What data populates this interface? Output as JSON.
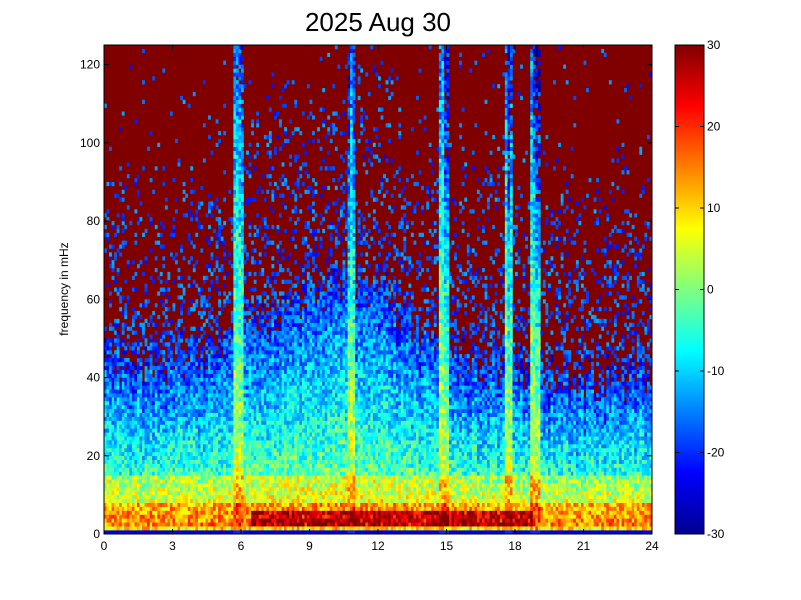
{
  "chart_data": {
    "type": "heatmap",
    "title": "2025 Aug 30",
    "xlabel": "",
    "ylabel": "frequency in mHz",
    "xlim": [
      0,
      24
    ],
    "ylim": [
      0,
      125
    ],
    "x_ticks": [
      0,
      3,
      6,
      9,
      12,
      15,
      18,
      21,
      24
    ],
    "y_ticks": [
      0,
      20,
      40,
      60,
      80,
      100,
      120
    ],
    "colormap": "jet",
    "clim": [
      -30,
      30
    ],
    "colorbar_ticks": [
      -30,
      -20,
      -10,
      0,
      10,
      20,
      30
    ],
    "grid": false,
    "colorbar_position": "right",
    "grid_columns": 216,
    "grid_rows": 125,
    "background_level_db": 30,
    "noise_floor_profile": [
      {
        "hour": 0,
        "top_freq_mhz": 45
      },
      {
        "hour": 2,
        "top_freq_mhz": 40
      },
      {
        "hour": 4,
        "top_freq_mhz": 43
      },
      {
        "hour": 6,
        "top_freq_mhz": 50
      },
      {
        "hour": 8,
        "top_freq_mhz": 55
      },
      {
        "hour": 10,
        "top_freq_mhz": 62
      },
      {
        "hour": 12,
        "top_freq_mhz": 58
      },
      {
        "hour": 13.5,
        "top_freq_mhz": 48
      },
      {
        "hour": 15,
        "top_freq_mhz": 42
      },
      {
        "hour": 17,
        "top_freq_mhz": 40
      },
      {
        "hour": 19,
        "top_freq_mhz": 37
      },
      {
        "hour": 21,
        "top_freq_mhz": 35
      },
      {
        "hour": 24,
        "top_freq_mhz": 38
      }
    ],
    "vertical_streaks_hours": [
      5.9,
      10.8,
      14.9,
      17.7,
      18.9
    ],
    "strong_band_mhz": [
      2,
      6
    ],
    "strong_band_hours": [
      6.5,
      18.8
    ]
  }
}
